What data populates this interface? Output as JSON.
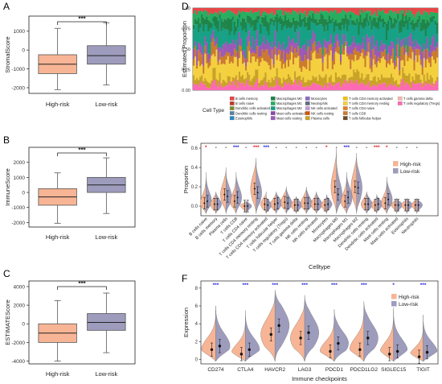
{
  "colors": {
    "high": "#f7b595",
    "low": "#9e9cbd",
    "low_dark": "#8c8aab",
    "sig_red": "#e8191c",
    "sig_blue": "#2222dd",
    "axis": "#222222"
  },
  "chart_data": [
    {
      "panel": "A",
      "type": "boxplot",
      "ylabel": "StromalScore",
      "categories": [
        "High-risk",
        "Low-risk"
      ],
      "yticks": [
        -2000,
        -1000,
        0,
        1000
      ],
      "ylim": [
        -2300,
        1800
      ],
      "significance": "***",
      "boxes": [
        {
          "category": "High-risk",
          "min": -2100,
          "q1": -1250,
          "median": -750,
          "q3": -250,
          "max": 1150
        },
        {
          "category": "Low-risk",
          "min": -1850,
          "q1": -750,
          "median": -300,
          "q3": 230,
          "max": 1450
        }
      ]
    },
    {
      "panel": "B",
      "type": "boxplot",
      "ylabel": "ImmuneScore",
      "categories": [
        "High-risk",
        "Low-risk"
      ],
      "yticks": [
        -2000,
        -1000,
        0,
        1000,
        2000
      ],
      "ylim": [
        -2300,
        3000
      ],
      "significance": "***",
      "boxes": [
        {
          "category": "High-risk",
          "min": -2050,
          "q1": -850,
          "median": -300,
          "q3": 250,
          "max": 1300
        },
        {
          "category": "Low-risk",
          "min": -1400,
          "q1": 0,
          "median": 500,
          "q3": 1000,
          "max": 2300
        }
      ]
    },
    {
      "panel": "C",
      "type": "boxplot",
      "ylabel": "ESTIMATEScore",
      "categories": [
        "High-risk",
        "Low-risk"
      ],
      "yticks": [
        -4000,
        -2000,
        0,
        2000,
        4000
      ],
      "ylim": [
        -4300,
        4600
      ],
      "significance": "***",
      "boxes": [
        {
          "category": "High-risk",
          "min": -4000,
          "q1": -2000,
          "median": -1000,
          "q3": 0,
          "max": 2500
        },
        {
          "category": "Low-risk",
          "min": -3100,
          "q1": -700,
          "median": 150,
          "q3": 1100,
          "max": 3300
        }
      ]
    },
    {
      "panel": "D",
      "type": "stacked_bar",
      "ylabel": "Estimated Proportion",
      "yticks": [
        "0.00",
        "0.25",
        "0.50",
        "0.75",
        "1.00"
      ],
      "ylim": [
        0,
        1
      ],
      "legend_title": "Cell Type",
      "legend_columns": [
        [
          "B cells memory",
          "B cells naive",
          "Dendritic cells activated",
          "Dendritic cells resting",
          "Eosinophils"
        ],
        [
          "Macrophages M0",
          "Macrophages M1",
          "Macrophages M2",
          "Mast cells activated",
          "Mast cells resting"
        ],
        [
          "Monocytes",
          "Neutrophils",
          "NK cells activated",
          "NK cells resting",
          "Plasma cells"
        ],
        [
          "T cells CD4 memory activated",
          "T cells CD4 memory resting",
          "T cells CD4 naive",
          "T cells CD8",
          "T cells follicular helper"
        ],
        [
          "T cells gamma delta",
          "T cells regulatory (Tregs)"
        ]
      ],
      "legend_colors": [
        [
          "#e64646",
          "#c0392b",
          "#7b8c2e",
          "#5b7fa0",
          "#2e86c1"
        ],
        [
          "#1e8449",
          "#27ae60",
          "#16a085",
          "#8e44ad",
          "#9b59b6"
        ],
        [
          "#8e6cc4",
          "#5d6d7e",
          "#c39bd3",
          "#d35400",
          "#c9a227"
        ],
        [
          "#f1c40f",
          "#f4d03f",
          "#e67e22",
          "#cb7a2f",
          "#6e4b2a"
        ],
        [
          "#f5b7b1",
          "#ff69b4"
        ]
      ],
      "approx_mean_composition": [
        {
          "cell": "T cells regulatory (Tregs)",
          "value": 0.07
        },
        {
          "cell": "Plasma cells",
          "value": 0.08
        },
        {
          "cell": "T cells CD4 memory resting",
          "value": 0.2
        },
        {
          "cell": "T cells CD8",
          "value": 0.1
        },
        {
          "cell": "Mast cells resting",
          "value": 0.12
        },
        {
          "cell": "Macrophages M2",
          "value": 0.2
        },
        {
          "cell": "Macrophages M0",
          "value": 0.1
        },
        {
          "cell": "Macrophages M1",
          "value": 0.08
        },
        {
          "cell": "B cells memory",
          "value": 0.05
        }
      ]
    },
    {
      "panel": "E",
      "type": "split_violin",
      "ylabel": "Proportion",
      "xlabel": "Celltype",
      "yticks": [
        "0.0",
        "0.2",
        "0.4",
        "0.6"
      ],
      "ylim": [
        -0.1,
        0.65
      ],
      "legend": [
        "High-risk",
        "Low-risk"
      ],
      "categories": [
        "B cells naive",
        "B cells memory",
        "Plasma cells",
        "T cells CD8",
        "T cells CD4 naive",
        "T cells CD4 memory resting",
        "T cells CD4 memory activated",
        "T cells follicular helper",
        "T cells regulatory (Tregs)",
        "T cells gamma delta",
        "NK cells resting",
        "NK cells activated",
        "Monocytes",
        "Macrophages M0",
        "Macrophages M1",
        "Macrophages M2",
        "Dendritic cells resting",
        "Dendritic cells activated",
        "Mast cells resting",
        "Mast cells activated",
        "Eosinophils",
        "Neutrophils"
      ],
      "significance": [
        "*",
        "-",
        "-",
        "***",
        "-",
        "***",
        "***",
        "-",
        "-",
        "-",
        "-",
        "-",
        "*",
        "-",
        "***",
        "-",
        "-",
        "***",
        "*",
        "-",
        "-",
        "-"
      ],
      "sig_colors": [
        "red",
        "black",
        "black",
        "blue",
        "black",
        "red",
        "blue",
        "black",
        "black",
        "black",
        "black",
        "black",
        "red",
        "black",
        "blue",
        "black",
        "black",
        "red",
        "red",
        "black",
        "black",
        "black"
      ],
      "high_means": [
        0.03,
        0.02,
        0.12,
        0.05,
        0.0,
        0.18,
        0.02,
        0.02,
        0.04,
        0.01,
        0.03,
        0.02,
        0.01,
        0.2,
        0.05,
        0.2,
        0.02,
        0.01,
        0.03,
        0.01,
        0.01,
        0.01
      ],
      "low_means": [
        0.05,
        0.02,
        0.1,
        0.09,
        0.0,
        0.14,
        0.01,
        0.03,
        0.03,
        0.01,
        0.03,
        0.02,
        0.02,
        0.12,
        0.09,
        0.19,
        0.02,
        0.02,
        0.07,
        0.01,
        0.01,
        0.01
      ],
      "high_max": [
        0.3,
        0.15,
        0.4,
        0.3,
        0.05,
        0.5,
        0.15,
        0.15,
        0.2,
        0.1,
        0.2,
        0.15,
        0.1,
        0.6,
        0.3,
        0.55,
        0.15,
        0.1,
        0.25,
        0.08,
        0.08,
        0.08
      ],
      "low_max": [
        0.35,
        0.15,
        0.35,
        0.35,
        0.05,
        0.45,
        0.1,
        0.15,
        0.2,
        0.1,
        0.2,
        0.15,
        0.12,
        0.5,
        0.35,
        0.5,
        0.15,
        0.12,
        0.3,
        0.08,
        0.08,
        0.08
      ]
    },
    {
      "panel": "F",
      "type": "split_violin",
      "ylabel": "Expression",
      "xlabel": "Immune checkpoints",
      "yticks": [
        0,
        2,
        4,
        6,
        8
      ],
      "ylim": [
        -0.5,
        8.8
      ],
      "legend": [
        "High-risk",
        "Low-risk"
      ],
      "categories": [
        "CD274",
        "CTLA4",
        "HAVCR2",
        "LAG3",
        "PDCD1",
        "PDCD1LG2",
        "SIGLEC15",
        "TIGIT"
      ],
      "significance": [
        "***",
        "***",
        "***",
        "***",
        "***",
        "***",
        "*",
        "***"
      ],
      "high_means": [
        1.1,
        0.6,
        2.8,
        2.4,
        0.9,
        1.1,
        0.6,
        0.3
      ],
      "low_means": [
        1.5,
        1.1,
        3.8,
        3.0,
        1.8,
        2.4,
        0.9,
        0.8
      ],
      "high_max": [
        5.5,
        4.8,
        7.2,
        6.5,
        4.8,
        5.8,
        5.5,
        4.2
      ],
      "low_max": [
        6.0,
        5.5,
        7.8,
        7.2,
        5.6,
        6.5,
        5.8,
        5.0
      ]
    }
  ]
}
